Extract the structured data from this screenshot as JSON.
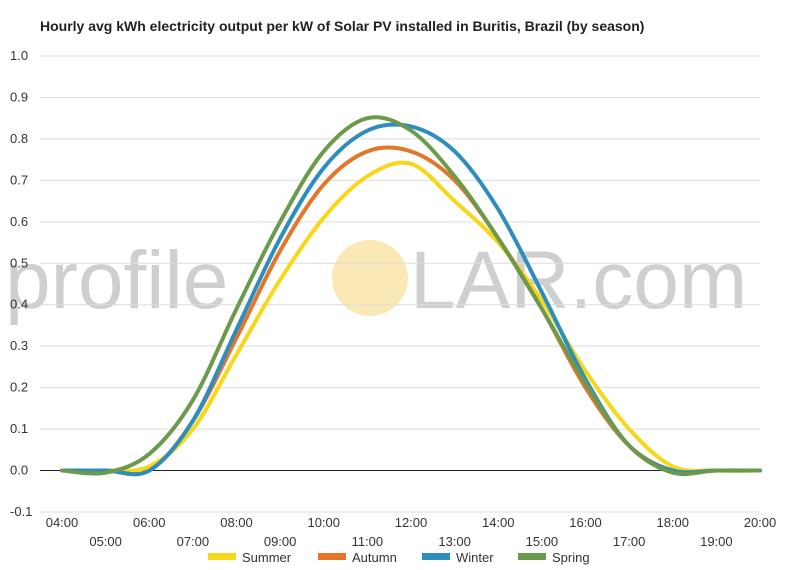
{
  "chart_data": {
    "type": "line",
    "title": "Hourly avg kWh electricity output per kW of Solar PV installed in Buritis, Brazil (by season)",
    "xlabel": "",
    "ylabel": "",
    "ylim": [
      -0.1,
      1.0
    ],
    "yticks": [
      "1.0",
      "0.9",
      "0.8",
      "0.7",
      "0.6",
      "0.5",
      "0.4",
      "0.3",
      "0.2",
      "0.1",
      "0.0",
      "-0.1"
    ],
    "x": [
      4,
      5,
      6,
      7,
      8,
      9,
      10,
      11,
      12,
      13,
      14,
      15,
      16,
      17,
      18,
      19,
      20
    ],
    "x_tick_labels": [
      "04:00",
      "05:00",
      "06:00",
      "07:00",
      "08:00",
      "09:00",
      "10:00",
      "11:00",
      "12:00",
      "13:00",
      "14:00",
      "15:00",
      "16:00",
      "17:00",
      "18:00",
      "19:00",
      "20:00"
    ],
    "grid": true,
    "legend_position": "bottom",
    "series": [
      {
        "name": "Summer",
        "color": "#f7d718",
        "values": [
          0.0,
          0.0,
          0.01,
          0.1,
          0.28,
          0.46,
          0.61,
          0.71,
          0.74,
          0.65,
          0.55,
          0.41,
          0.24,
          0.1,
          0.01,
          0.0,
          0.0
        ]
      },
      {
        "name": "Autumn",
        "color": "#e3762b",
        "values": [
          0.0,
          0.0,
          0.0,
          0.12,
          0.32,
          0.53,
          0.69,
          0.77,
          0.77,
          0.7,
          0.56,
          0.39,
          0.2,
          0.06,
          0.0,
          0.0,
          0.0
        ]
      },
      {
        "name": "Winter",
        "color": "#2d8dbd",
        "values": [
          0.0,
          0.0,
          0.0,
          0.12,
          0.34,
          0.56,
          0.73,
          0.82,
          0.83,
          0.77,
          0.63,
          0.43,
          0.22,
          0.06,
          0.0,
          0.0,
          0.0
        ]
      },
      {
        "name": "Spring",
        "color": "#6c9a4c",
        "values": [
          0.0,
          -0.005,
          0.04,
          0.17,
          0.39,
          0.6,
          0.77,
          0.85,
          0.82,
          0.71,
          0.56,
          0.39,
          0.21,
          0.06,
          -0.005,
          0.0,
          0.0
        ]
      }
    ]
  },
  "watermark": {
    "left": "profile",
    "right": "LAR.com",
    "sun_color": "#fbe9b5"
  }
}
